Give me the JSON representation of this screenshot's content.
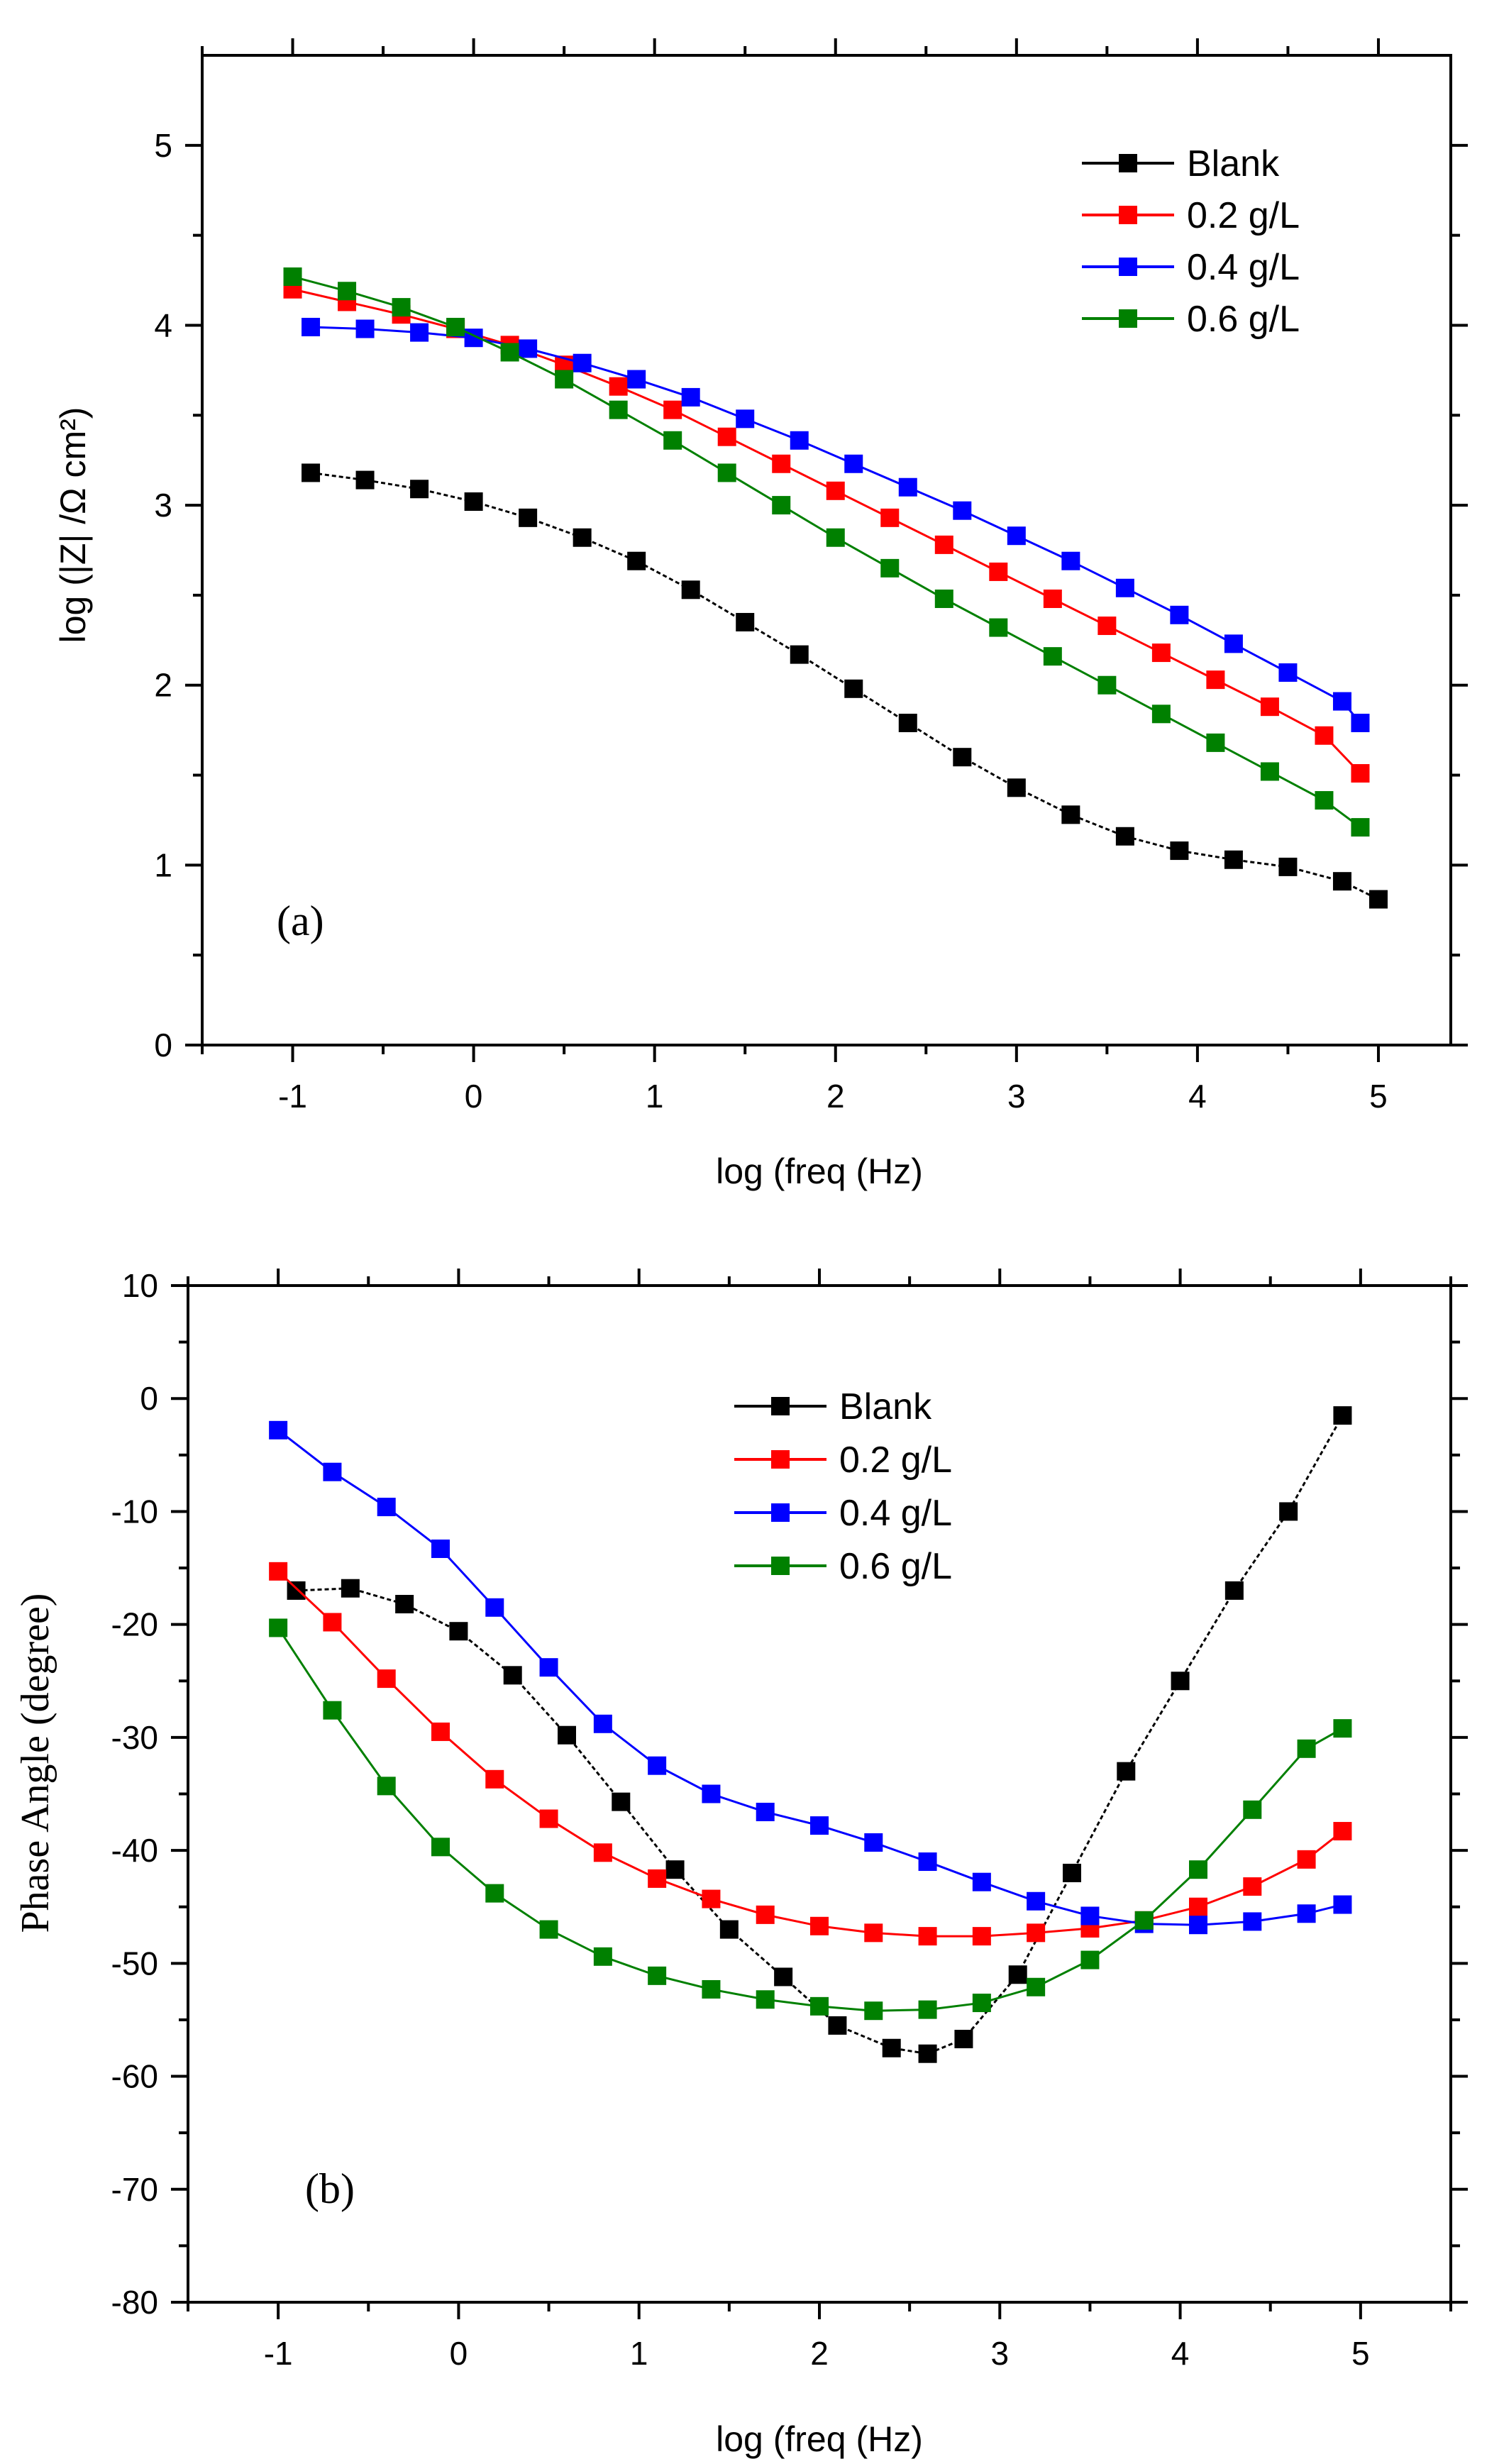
{
  "colors": {
    "Blank": "#000000",
    "0.2 g/L": "#ff0000",
    "0.4 g/L": "#0000ff",
    "0.6 g/L": "#008000"
  },
  "chart_data": [
    {
      "type": "scatter",
      "panel_label": "(a)",
      "title": "",
      "xlabel": "log (freq (Hz)",
      "ylabel": "log (|Z| /Ω cm²)",
      "xlim": [
        -1.5,
        5.4
      ],
      "ylim": [
        0,
        5.5
      ],
      "xticks": [
        -1,
        0,
        1,
        2,
        3,
        4,
        5
      ],
      "yticks": [
        0,
        1,
        2,
        3,
        4,
        5
      ],
      "legend_position": "top-right",
      "series": [
        {
          "name": "Blank",
          "x": [
            -0.9,
            -0.6,
            -0.3,
            0,
            0.3,
            0.6,
            0.9,
            1.2,
            1.5,
            1.8,
            2.1,
            2.4,
            2.7,
            3.0,
            3.3,
            3.6,
            3.9,
            4.2,
            4.5,
            4.8,
            5.0
          ],
          "y": [
            3.18,
            3.14,
            3.09,
            3.02,
            2.93,
            2.82,
            2.69,
            2.53,
            2.35,
            2.17,
            1.98,
            1.79,
            1.6,
            1.43,
            1.28,
            1.16,
            1.08,
            1.03,
            0.99,
            0.91,
            0.81
          ]
        },
        {
          "name": "0.2 g/L",
          "x": [
            -1.0,
            -0.7,
            -0.4,
            -0.1,
            0.2,
            0.5,
            0.8,
            1.1,
            1.4,
            1.7,
            2.0,
            2.3,
            2.6,
            2.9,
            3.2,
            3.5,
            3.8,
            4.1,
            4.4,
            4.7,
            4.9
          ],
          "y": [
            4.2,
            4.13,
            4.06,
            3.98,
            3.89,
            3.78,
            3.66,
            3.53,
            3.38,
            3.23,
            3.08,
            2.93,
            2.78,
            2.63,
            2.48,
            2.33,
            2.18,
            2.03,
            1.88,
            1.72,
            1.51
          ]
        },
        {
          "name": "0.4 g/L",
          "x": [
            -0.9,
            -0.6,
            -0.3,
            0,
            0.3,
            0.6,
            0.9,
            1.2,
            1.5,
            1.8,
            2.1,
            2.4,
            2.7,
            3.0,
            3.3,
            3.6,
            3.9,
            4.2,
            4.5,
            4.8,
            4.9
          ],
          "y": [
            3.99,
            3.98,
            3.96,
            3.93,
            3.87,
            3.79,
            3.7,
            3.6,
            3.48,
            3.36,
            3.23,
            3.1,
            2.97,
            2.83,
            2.69,
            2.54,
            2.39,
            2.23,
            2.07,
            1.91,
            1.79
          ]
        },
        {
          "name": "0.6 g/L",
          "x": [
            -1.0,
            -0.7,
            -0.4,
            -0.1,
            0.2,
            0.5,
            0.8,
            1.1,
            1.4,
            1.7,
            2.0,
            2.3,
            2.6,
            2.9,
            3.2,
            3.5,
            3.8,
            4.1,
            4.4,
            4.7,
            4.9
          ],
          "y": [
            4.27,
            4.19,
            4.1,
            3.99,
            3.85,
            3.7,
            3.53,
            3.36,
            3.18,
            3.0,
            2.82,
            2.65,
            2.48,
            2.32,
            2.16,
            2.0,
            1.84,
            1.68,
            1.52,
            1.36,
            1.21
          ]
        }
      ]
    },
    {
      "type": "scatter",
      "panel_label": "(b)",
      "title": "",
      "xlabel": "log (freq (Hz)",
      "ylabel": "Phase Angle (degree)",
      "xlim": [
        -1.5,
        5.5
      ],
      "ylim": [
        -80,
        10
      ],
      "xticks": [
        -1,
        0,
        1,
        2,
        3,
        4,
        5
      ],
      "yticks": [
        10,
        0,
        -10,
        -20,
        -30,
        -40,
        -50,
        -60,
        -70,
        -80
      ],
      "legend_position": "top-center",
      "series": [
        {
          "name": "Blank",
          "x": [
            -0.9,
            -0.6,
            -0.3,
            0,
            0.3,
            0.6,
            0.9,
            1.2,
            1.5,
            1.8,
            2.1,
            2.4,
            2.6,
            2.8,
            3.1,
            3.4,
            3.7,
            4.0,
            4.3,
            4.6,
            4.9
          ],
          "y": [
            -17.0,
            -16.8,
            -18.2,
            -20.6,
            -24.5,
            -29.8,
            -35.7,
            -41.7,
            -47.0,
            -51.2,
            -55.5,
            -57.5,
            -58.0,
            -56.7,
            -51.0,
            -42.0,
            -33.0,
            -25.0,
            -17.0,
            -10.0,
            -1.5
          ]
        },
        {
          "name": "0.2 g/L",
          "x": [
            -1.0,
            -0.7,
            -0.4,
            -0.1,
            0.2,
            0.5,
            0.8,
            1.1,
            1.4,
            1.7,
            2.0,
            2.3,
            2.6,
            2.9,
            3.2,
            3.5,
            3.8,
            4.1,
            4.4,
            4.7,
            4.9
          ],
          "y": [
            -15.3,
            -19.8,
            -24.8,
            -29.5,
            -33.7,
            -37.2,
            -40.2,
            -42.5,
            -44.3,
            -45.7,
            -46.7,
            -47.3,
            -47.6,
            -47.6,
            -47.3,
            -46.9,
            -46.2,
            -45.0,
            -43.2,
            -40.8,
            -38.3
          ]
        },
        {
          "name": "0.4 g/L",
          "x": [
            -1.0,
            -0.7,
            -0.4,
            -0.1,
            0.2,
            0.5,
            0.8,
            1.1,
            1.4,
            1.7,
            2.0,
            2.3,
            2.6,
            2.9,
            3.2,
            3.5,
            3.8,
            4.1,
            4.4,
            4.7,
            4.9
          ],
          "y": [
            -2.8,
            -6.5,
            -9.6,
            -13.3,
            -18.5,
            -23.8,
            -28.8,
            -32.5,
            -35.0,
            -36.6,
            -37.8,
            -39.3,
            -41.0,
            -42.8,
            -44.5,
            -45.8,
            -46.5,
            -46.6,
            -46.3,
            -45.6,
            -44.8
          ]
        },
        {
          "name": "0.6 g/L",
          "x": [
            -1.0,
            -0.7,
            -0.4,
            -0.1,
            0.2,
            0.5,
            0.8,
            1.1,
            1.4,
            1.7,
            2.0,
            2.3,
            2.6,
            2.9,
            3.2,
            3.5,
            3.8,
            4.1,
            4.4,
            4.7,
            4.9
          ],
          "y": [
            -20.3,
            -27.6,
            -34.3,
            -39.7,
            -43.8,
            -47.0,
            -49.4,
            -51.1,
            -52.3,
            -53.2,
            -53.8,
            -54.2,
            -54.1,
            -53.5,
            -52.1,
            -49.7,
            -46.2,
            -41.7,
            -36.4,
            -31.0,
            -29.2
          ]
        }
      ]
    }
  ]
}
